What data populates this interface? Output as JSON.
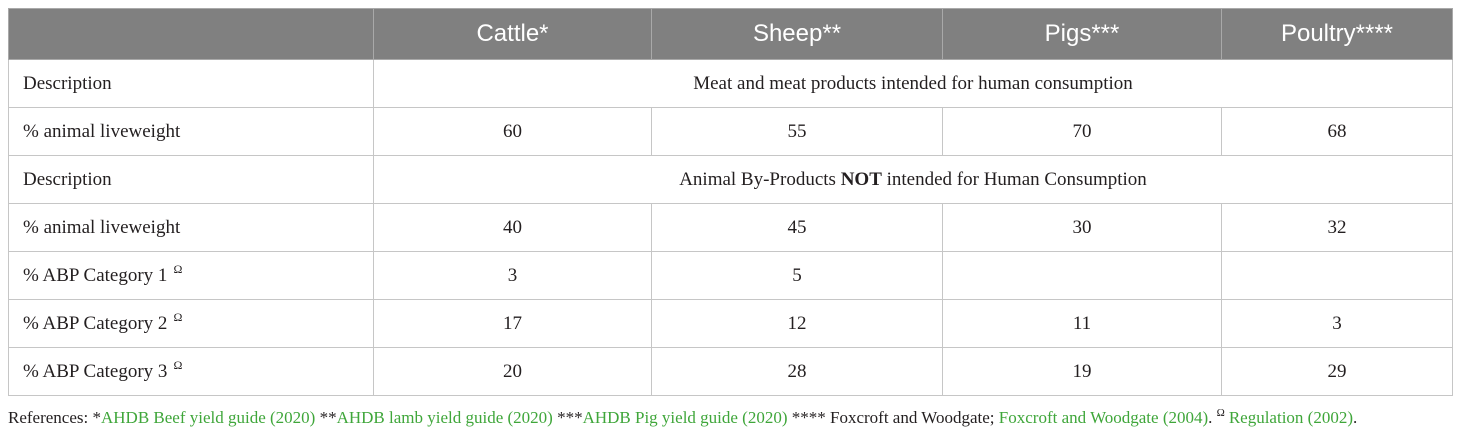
{
  "table": {
    "columns": [
      "Cattle*",
      "Sheep**",
      "Pigs***",
      "Poultry****"
    ],
    "rows": [
      {
        "label": "Description",
        "merged": "Meat and meat products intended for human consumption"
      },
      {
        "label": "% animal liveweight",
        "values": [
          "60",
          "55",
          "70",
          "68"
        ]
      },
      {
        "label": "Description",
        "merged_before": "Animal By-Products ",
        "merged_bold": "NOT",
        "merged_after": " intended for Human Consumption"
      },
      {
        "label": "% animal liveweight",
        "values": [
          "40",
          "45",
          "30",
          "32"
        ]
      },
      {
        "label": "% ABP Category 1",
        "sup": "Ω",
        "values": [
          "3",
          "5",
          "",
          ""
        ]
      },
      {
        "label": "% ABP Category 2",
        "sup": "Ω",
        "values": [
          "17",
          "12",
          "11",
          "3"
        ]
      },
      {
        "label": "% ABP Category 3",
        "sup": "Ω",
        "values": [
          "20",
          "28",
          "19",
          "29"
        ]
      }
    ]
  },
  "references": {
    "t1": "References: *",
    "l1": "AHDB Beef yield guide (2020)",
    "t2": " **",
    "l2": "AHDB lamb yield guide (2020)",
    "t3": " ***",
    "l3": "AHDB Pig yield guide (2020)",
    "t4": " **** Foxcroft and Woodgate; ",
    "l4": "Foxcroft and Woodgate (2004)",
    "t5": ". ",
    "sup": "Ω",
    "l5": "Regulation (2002)",
    "t6": "."
  },
  "colors": {
    "header_bg": "#808080",
    "header_text": "#ffffff",
    "link": "#3fa63a",
    "border": "#c6c6c6"
  }
}
